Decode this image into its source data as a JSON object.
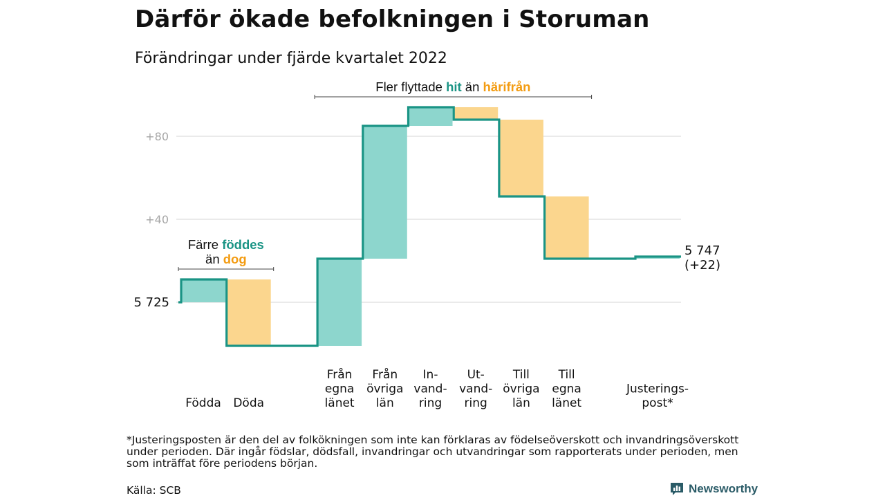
{
  "title": "Därför ökade befolkningen i Storuman",
  "subtitle": "Förändringar under fjärde kvartalet 2022",
  "footnote": "*Justeringsposten är den del av folkökningen som inte kan förklaras av födelseöverskott och invandringsöverskott under perioden. Där ingår födslar, dödsfall, invandringar och utvandringar som rapporterats under perioden, men som inträffat före periodens början.",
  "source": "Källa: SCB",
  "logo_text": "Newsworthy",
  "colors": {
    "increase": "#8dd6cd",
    "decrease": "#fbd68e",
    "line": "#1a9485",
    "grid": "#dddddd",
    "axis_text": "#a6a6a6",
    "hit": "#1a9485",
    "harifran": "#f39c12"
  },
  "chart_data": {
    "type": "waterfall",
    "start_value": 5725,
    "start_label": "5 725",
    "end_label": "5 747",
    "end_change_label": "(+22)",
    "ylim": [
      -25,
      105
    ],
    "yticks": [
      {
        "value": 40,
        "label": "+40"
      },
      {
        "value": 80,
        "label": "+80"
      }
    ],
    "grid_values": [
      0,
      40,
      80
    ],
    "categories": [
      {
        "label": "Födda",
        "value": 11
      },
      {
        "label": "Döda",
        "value": -32
      },
      {
        "label": "Från egna länet",
        "value": 42
      },
      {
        "label": "Från övriga län",
        "value": 64
      },
      {
        "label": "In- vand- ring",
        "value": 9
      },
      {
        "label": "Ut- vand- ring",
        "value": -6
      },
      {
        "label": "Till övriga län",
        "value": -37
      },
      {
        "label": "Till egna länet",
        "value": -30
      },
      {
        "label": "Justerings- post*",
        "value": 1
      }
    ],
    "annotations": [
      {
        "lines": [
          [
            {
              "text": "Färre ",
              "style": "plain"
            },
            {
              "text": "föddes",
              "style": "hit"
            }
          ],
          [
            {
              "text": "än ",
              "style": "plain"
            },
            {
              "text": "dog",
              "style": "harifran"
            }
          ]
        ],
        "span": [
          "Födda",
          "Döda"
        ]
      },
      {
        "lines": [
          [
            {
              "text": "Fler flyttade ",
              "style": "plain"
            },
            {
              "text": "hit",
              "style": "hit"
            },
            {
              "text": " än ",
              "style": "plain"
            },
            {
              "text": "härifrån",
              "style": "harifran"
            }
          ]
        ],
        "span": [
          "Från egna länet",
          "Till egna länet"
        ]
      }
    ]
  }
}
